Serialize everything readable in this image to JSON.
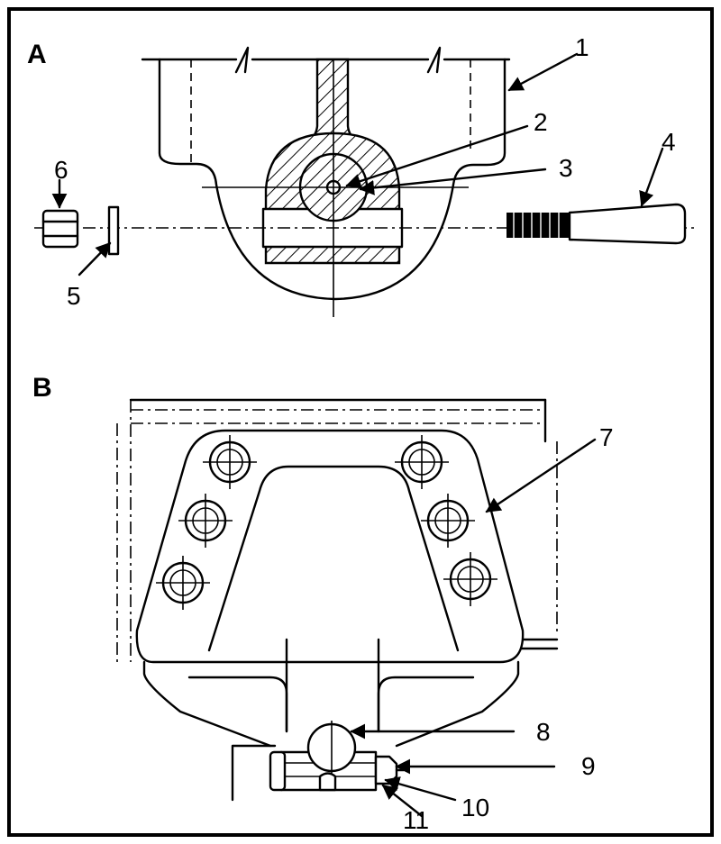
{
  "views": [
    {
      "id": "A",
      "label": "A"
    },
    {
      "id": "B",
      "label": "B"
    }
  ],
  "callouts": [
    "1",
    "2",
    "3",
    "4",
    "5",
    "6",
    "7",
    "8",
    "9",
    "10",
    "11"
  ],
  "colors": {
    "line": "#000000",
    "background": "#ffffff"
  }
}
